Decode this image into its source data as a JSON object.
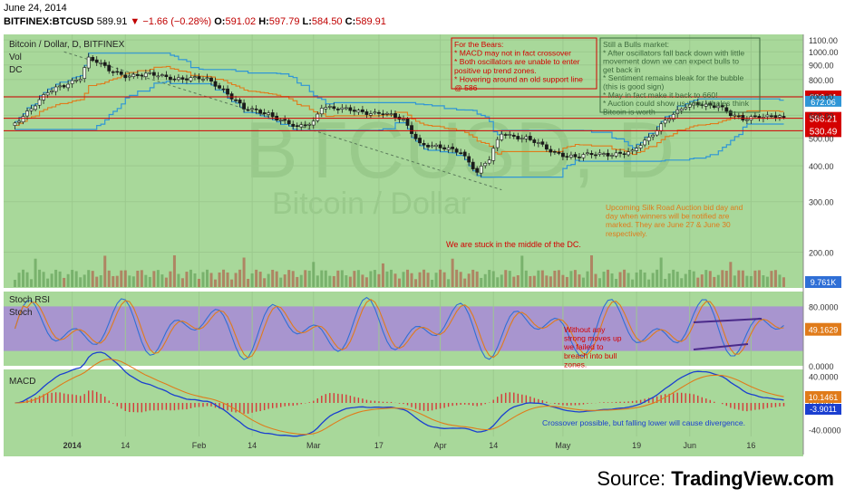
{
  "header": {
    "date": "June 24, 2014",
    "symbol": "BITFINEX:BTCUSD",
    "last": "589.91",
    "change": "▼ −1.66 (−0.28%)",
    "open_label": "O:",
    "open": "591.02",
    "high_label": "H:",
    "high": "597.79",
    "low_label": "L:",
    "low": "584.50",
    "close_label": "C:",
    "close": "589.91"
  },
  "source": {
    "prefix": "Source: ",
    "brand": "TradingView.com"
  },
  "watermark": {
    "big": "BTCUSD, D",
    "small": "Bitcoin / Dollar"
  },
  "colors": {
    "bg": "#a8d89a",
    "up": "#3d6b3d",
    "down": "#1a1a1a",
    "dc": "#2f96d6",
    "mid": "#e07b1a",
    "level": "#d40000",
    "stoch_zone": "#a88ad8",
    "macd": "#1a3fd0",
    "signal": "#e07b1a",
    "hist": "#d43a3a"
  },
  "chart_data": [
    {
      "type": "candlestick",
      "title": "Bitcoin / Dollar, D, BITFINEX",
      "indicators": [
        "Vol",
        "DC"
      ],
      "ylim": [
        150,
        1150
      ],
      "scale": "log",
      "yticks": [
        200,
        300,
        400,
        500,
        600,
        700,
        800,
        900,
        1000,
        1100
      ],
      "y_tick_labels": [
        "200.00",
        "300.00",
        "400.00",
        "500.00",
        "600.00",
        "700.00",
        "800.00",
        "900.00",
        "1000.00",
        "1100.00"
      ],
      "x_labels": [
        "2014",
        "14",
        "Feb",
        "14",
        "Mar",
        "17",
        "Apr",
        "14",
        "May",
        "19",
        "Jun",
        "16"
      ],
      "x_label_dates": [
        "2014-01-01",
        "2014-01-14",
        "2014-02-01",
        "2014-02-14",
        "2014-03-01",
        "2014-03-17",
        "2014-04-01",
        "2014-04-14",
        "2014-05-01",
        "2014-05-19",
        "2014-06-01",
        "2014-06-16"
      ],
      "close_keyframes": [
        [
          "2013-12-18",
          560
        ],
        [
          "2013-12-22",
          640
        ],
        [
          "2013-12-26",
          720
        ],
        [
          "2013-12-30",
          760
        ],
        [
          "2014-01-03",
          820
        ],
        [
          "2014-01-05",
          950
        ],
        [
          "2014-01-07",
          920
        ],
        [
          "2014-01-10",
          860
        ],
        [
          "2014-01-14",
          830
        ],
        [
          "2014-01-20",
          830
        ],
        [
          "2014-01-27",
          810
        ],
        [
          "2014-02-03",
          800
        ],
        [
          "2014-02-07",
          740
        ],
        [
          "2014-02-12",
          630
        ],
        [
          "2014-02-18",
          610
        ],
        [
          "2014-02-21",
          580
        ],
        [
          "2014-02-25",
          540
        ],
        [
          "2014-03-01",
          570
        ],
        [
          "2014-03-03",
          650
        ],
        [
          "2014-03-07",
          630
        ],
        [
          "2014-03-12",
          620
        ],
        [
          "2014-03-18",
          610
        ],
        [
          "2014-03-23",
          575
        ],
        [
          "2014-03-27",
          480
        ],
        [
          "2014-04-01",
          460
        ],
        [
          "2014-04-06",
          450
        ],
        [
          "2014-04-10",
          380
        ],
        [
          "2014-04-13",
          420
        ],
        [
          "2014-04-16",
          520
        ],
        [
          "2014-04-22",
          500
        ],
        [
          "2014-04-28",
          450
        ],
        [
          "2014-05-04",
          430
        ],
        [
          "2014-05-10",
          440
        ],
        [
          "2014-05-18",
          445
        ],
        [
          "2014-05-22",
          500
        ],
        [
          "2014-05-26",
          580
        ],
        [
          "2014-05-31",
          640
        ],
        [
          "2014-06-03",
          660
        ],
        [
          "2014-06-08",
          650
        ],
        [
          "2014-06-11",
          600
        ],
        [
          "2014-06-14",
          580
        ],
        [
          "2014-06-17",
          600
        ],
        [
          "2014-06-21",
          595
        ],
        [
          "2014-06-24",
          589.91
        ]
      ],
      "levels": [
        {
          "value": 696.41,
          "label": "696.41",
          "color": "#d40000"
        },
        {
          "value": 586.21,
          "label": "586.21",
          "color": "#d40000"
        },
        {
          "value": 530.49,
          "label": "530.49",
          "color": "#d40000"
        }
      ],
      "dc_upper_label": "672.06",
      "volume_label": "9.761K",
      "annotations": [
        {
          "lines": [
            "For the Bears:",
            "* MACD may not in fact crossover",
            "* Both oscillators are unable to enter",
            "positive up trend zones.",
            "* Hovering around an old support line",
            "@ 586"
          ],
          "color": "#d40000",
          "boxed": true
        },
        {
          "lines": [
            "Still a Bulls market:",
            "* After oscillators fall back down with little",
            "movement down we can expect bulls to",
            "get back in",
            "* Sentiment remains bleak for the bubble",
            "(this is good sign)",
            "* May in fact make it back to 660!",
            "* Auction could show us what whales think",
            "Bitcoin is worth"
          ],
          "color": "#3d6b3d",
          "boxed": true
        },
        {
          "lines": [
            "We are stuck in the middle of the DC."
          ],
          "color": "#d40000",
          "boxed": false
        },
        {
          "lines": [
            "Upcoming Silk Road Auction bid day and",
            "day when winners will be notified are",
            "marked.  They are June 27 & June 30",
            "respectively."
          ],
          "color": "#e07b1a",
          "boxed": false
        }
      ]
    },
    {
      "type": "line",
      "title": "Stoch RSI",
      "subtitle": "Stoch",
      "ylim": [
        0,
        100
      ],
      "yticks": [
        0,
        80
      ],
      "y_tick_labels": [
        "0.0000",
        "80.0000"
      ],
      "value_label": "49.1629",
      "zone": [
        20,
        80
      ],
      "annotation": {
        "lines": [
          "Without any",
          "strong moves up",
          "we failed to",
          "breach into bull",
          "zones."
        ],
        "color": "#d40000"
      }
    },
    {
      "type": "line",
      "title": "MACD",
      "ylim": [
        -50,
        50
      ],
      "yticks": [
        -40,
        0,
        40
      ],
      "y_tick_labels": [
        "-40.0000",
        "0.0000",
        "40.0000"
      ],
      "value_labels": [
        "10.1461",
        "-3.9011"
      ],
      "annotation": {
        "lines": [
          "Crossover possible, but falling lower will cause divergence."
        ],
        "color": "#1a3fd0"
      }
    }
  ]
}
